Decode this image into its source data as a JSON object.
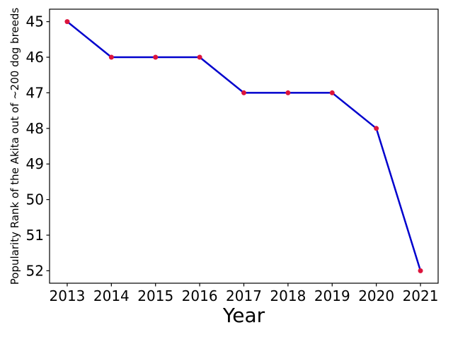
{
  "figure": {
    "title": "",
    "background_color": "#FFFFFF"
  },
  "chart_data": {
    "type": "line",
    "x": [
      2013,
      2014,
      2015,
      2016,
      2017,
      2018,
      2019,
      2020,
      2021
    ],
    "series": [
      {
        "name": "Akita popularity rank",
        "values": [
          45,
          46,
          46,
          46,
          47,
          47,
          47,
          48,
          52
        ]
      }
    ],
    "title": "",
    "xlabel": "Year",
    "ylabel": "Popularity Rank of the Akita out of ~200 dog breeds",
    "xticks": [
      2013,
      2014,
      2015,
      2016,
      2017,
      2018,
      2019,
      2020,
      2021
    ],
    "yticks": [
      45,
      46,
      47,
      48,
      49,
      50,
      51,
      52
    ],
    "xlim": [
      2012.6,
      2021.4
    ],
    "ylim": [
      44.65,
      52.35
    ],
    "y_axis_inverted": true,
    "grid": false,
    "legend": null,
    "line_color": "#0000CD",
    "marker_color": "#DC143C",
    "marker_shape": "circle",
    "axis_color": "#000000"
  }
}
